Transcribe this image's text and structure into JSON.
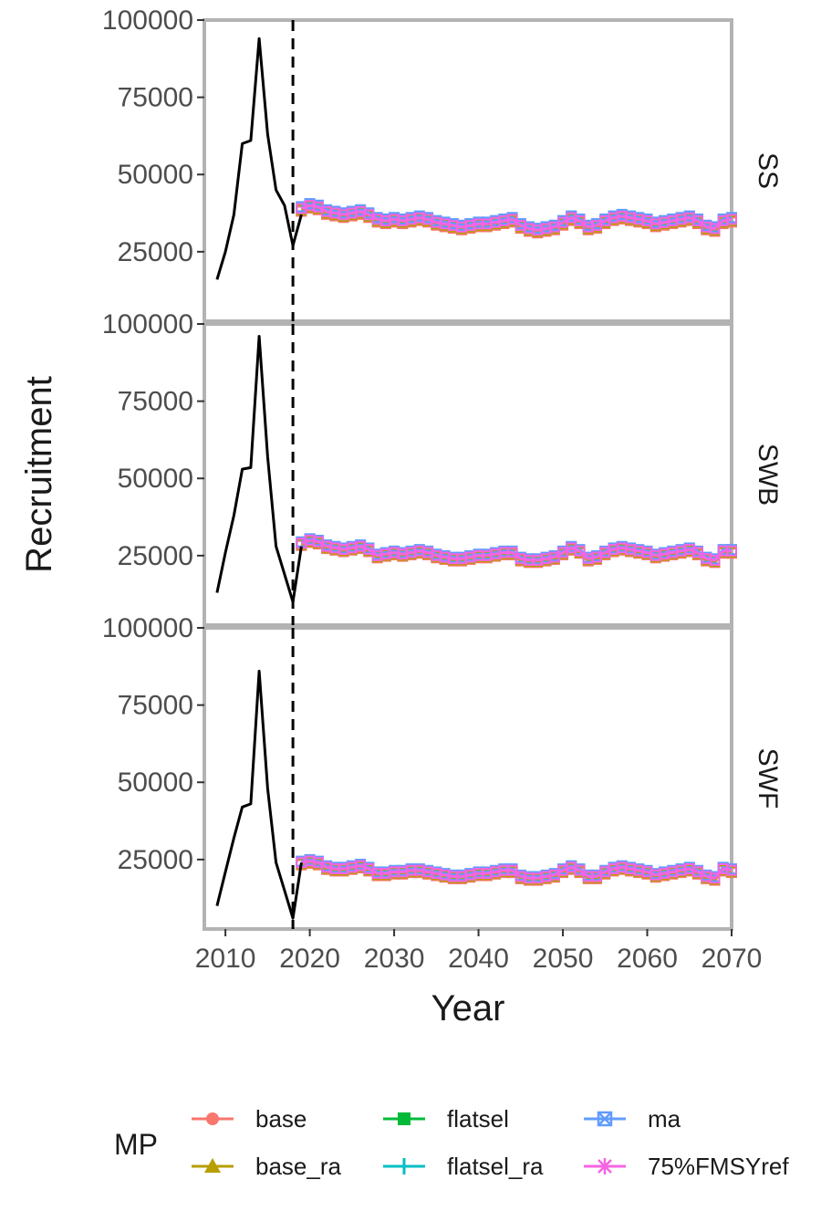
{
  "chart_data": {
    "type": "line",
    "xlabel": "Year",
    "ylabel": "Recruitment",
    "xlim": [
      2007.5,
      2070
    ],
    "x_ticks": [
      "2010",
      "2020",
      "2030",
      "2040",
      "2050",
      "2060",
      "2070"
    ],
    "y_ticks": [
      25000,
      50000,
      75000,
      100000
    ],
    "y_tick_labels": [
      "25000",
      "50000",
      "75000",
      "100000"
    ],
    "vline_x": 2018,
    "legend": {
      "title": "MP",
      "position": "bottom",
      "entries": [
        {
          "label": "base",
          "color": "#F8766D",
          "shape": "circle"
        },
        {
          "label": "base_ra",
          "color": "#B79F00",
          "shape": "triangle"
        },
        {
          "label": "flatsel",
          "color": "#00BA38",
          "shape": "square"
        },
        {
          "label": "flatsel_ra",
          "color": "#00BFC4",
          "shape": "plus"
        },
        {
          "label": "ma",
          "color": "#619CFF",
          "shape": "square-cross"
        },
        {
          "label": "75%FMSYref",
          "color": "#F564E3",
          "shape": "star"
        }
      ]
    },
    "panels": [
      {
        "strip": "SS",
        "ylim": [
          2500,
          100000
        ],
        "history": {
          "x": [
            2009,
            2010,
            2011,
            2012,
            2013,
            2014,
            2015,
            2016,
            2017,
            2018,
            2019
          ],
          "y": [
            16000,
            25000,
            37000,
            60000,
            61000,
            94000,
            63000,
            45000,
            40000,
            27000,
            37000
          ]
        },
        "projection_x_start": 2019,
        "projection_mean": [
          39000,
          40000,
          39500,
          38000,
          37500,
          37000,
          37500,
          38000,
          37000,
          35500,
          35000,
          35500,
          35000,
          35500,
          36000,
          35500,
          34500,
          34000,
          33500,
          33000,
          33500,
          34000,
          34000,
          34500,
          35000,
          35500,
          33500,
          32500,
          32000,
          32500,
          33000,
          34500,
          36000,
          35000,
          33000,
          33500,
          35000,
          36000,
          36500,
          36000,
          35500,
          35000,
          34000,
          34500,
          35000,
          35500,
          36000,
          35000,
          33000,
          32500,
          35000,
          35500
        ]
      },
      {
        "strip": "SWB",
        "ylim": [
          2500,
          100000
        ],
        "history": {
          "x": [
            2009,
            2010,
            2011,
            2012,
            2013,
            2014,
            2015,
            2016,
            2017,
            2018,
            2019
          ],
          "y": [
            13000,
            26000,
            38000,
            53000,
            53500,
            96000,
            57000,
            28000,
            19000,
            10000,
            28000
          ]
        },
        "projection_x_start": 2019,
        "projection_mean": [
          29000,
          30000,
          29500,
          28000,
          27500,
          27000,
          27500,
          28000,
          27000,
          25000,
          25500,
          26000,
          25500,
          26000,
          26500,
          26000,
          25000,
          24500,
          24000,
          24000,
          24500,
          25000,
          25000,
          25500,
          26000,
          26000,
          24000,
          23500,
          23500,
          24000,
          24500,
          26000,
          27500,
          26500,
          24000,
          24500,
          26000,
          27000,
          27500,
          27000,
          26500,
          26000,
          25000,
          25500,
          26000,
          26500,
          27000,
          26000,
          24000,
          23500,
          26500,
          26500
        ]
      },
      {
        "strip": "SWF",
        "ylim": [
          2500,
          100000
        ],
        "history": {
          "x": [
            2009,
            2010,
            2011,
            2012,
            2013,
            2014,
            2015,
            2016,
            2017,
            2018,
            2019
          ],
          "y": [
            10000,
            21000,
            32000,
            42000,
            43000,
            86000,
            48000,
            24000,
            15000,
            6000,
            24000
          ]
        },
        "projection_x_start": 2019,
        "projection_mean": [
          24000,
          24500,
          24000,
          22500,
          22000,
          22000,
          22500,
          23000,
          22000,
          20500,
          20500,
          21000,
          21000,
          21500,
          21500,
          21000,
          20500,
          20000,
          19500,
          19500,
          20000,
          20500,
          20500,
          21000,
          21500,
          21500,
          19500,
          19000,
          19000,
          19500,
          20000,
          21500,
          22500,
          21500,
          19500,
          19500,
          21000,
          22000,
          22500,
          22000,
          21500,
          21000,
          20000,
          20500,
          21000,
          21500,
          22000,
          21000,
          19500,
          19000,
          22000,
          21500
        ]
      }
    ]
  }
}
